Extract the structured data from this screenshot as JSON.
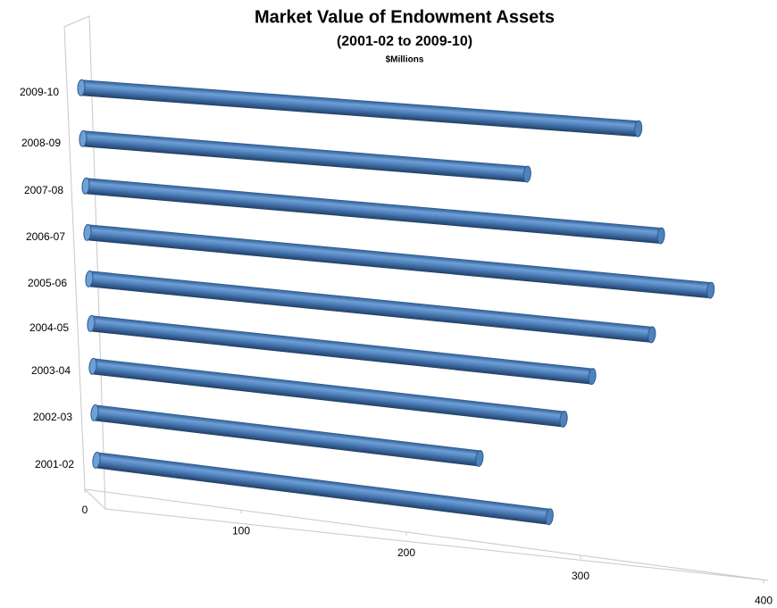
{
  "chart_data": {
    "type": "bar",
    "orientation": "horizontal",
    "title": "Market Value of Endowment Assets",
    "subtitle": "(2001-02 to 2009-10)",
    "unit_label": "$Millions",
    "categories": [
      "2001-02",
      "2002-03",
      "2003-04",
      "2004-05",
      "2005-06",
      "2006-07",
      "2007-08",
      "2008-09",
      "2009-10"
    ],
    "values": [
      279,
      240,
      289,
      306,
      340,
      373,
      347,
      274,
      337
    ],
    "color": "#4f81bd",
    "xlim": [
      0,
      400
    ],
    "xticks": [
      0,
      100,
      200,
      300,
      400
    ]
  }
}
